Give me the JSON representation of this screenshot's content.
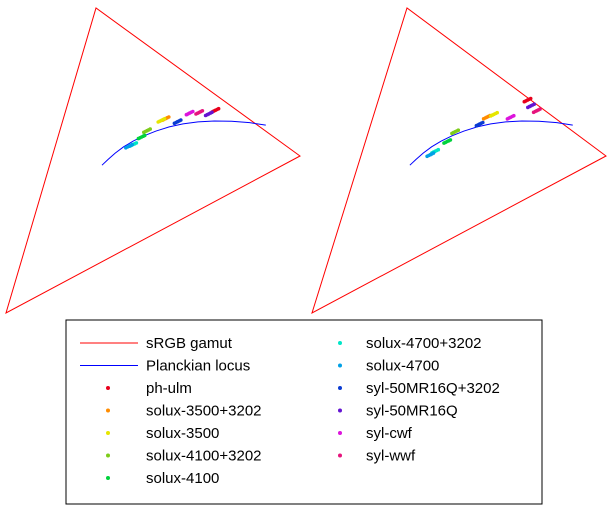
{
  "chart_data": {
    "type": "scatter",
    "description_units": "chromaticity (x, y) in the CIE 1931 diagram",
    "panels": [
      {
        "name": "left",
        "points": [
          {
            "label": "ph-ulm",
            "x": 0.499,
            "y": 0.414
          },
          {
            "label": "solux-3500+3202",
            "x": 0.416,
            "y": 0.402
          },
          {
            "label": "solux-3500",
            "x": 0.409,
            "y": 0.4
          },
          {
            "label": "solux-4100+3202",
            "x": 0.385,
            "y": 0.38
          },
          {
            "label": "solux-4100",
            "x": 0.376,
            "y": 0.37
          },
          {
            "label": "solux-4700+3202",
            "x": 0.362,
            "y": 0.358
          },
          {
            "label": "solux-4700",
            "x": 0.355,
            "y": 0.353
          },
          {
            "label": "syl-50MR16Q+3202",
            "x": 0.436,
            "y": 0.396
          },
          {
            "label": "syl-50MR16Q",
            "x": 0.488,
            "y": 0.41
          },
          {
            "label": "syl-cwf",
            "x": 0.456,
            "y": 0.41
          },
          {
            "label": "syl-wwf",
            "x": 0.472,
            "y": 0.412
          }
        ]
      },
      {
        "name": "right",
        "points": [
          {
            "label": "ph-ulm",
            "x": 0.506,
            "y": 0.432
          },
          {
            "label": "solux-3500+3202",
            "x": 0.438,
            "y": 0.404
          },
          {
            "label": "solux-3500",
            "x": 0.45,
            "y": 0.41
          },
          {
            "label": "solux-4100+3202",
            "x": 0.385,
            "y": 0.378
          },
          {
            "label": "solux-4100",
            "x": 0.372,
            "y": 0.362
          },
          {
            "label": "solux-4700+3202",
            "x": 0.352,
            "y": 0.346
          },
          {
            "label": "solux-4700",
            "x": 0.344,
            "y": 0.338
          },
          {
            "label": "syl-50MR16Q+3202",
            "x": 0.426,
            "y": 0.392
          },
          {
            "label": "syl-50MR16Q",
            "x": 0.512,
            "y": 0.424
          },
          {
            "label": "syl-cwf",
            "x": 0.478,
            "y": 0.402
          },
          {
            "label": "syl-wwf",
            "x": 0.522,
            "y": 0.414
          }
        ]
      }
    ],
    "srgb_gamut": [
      [
        0.64,
        0.33
      ],
      [
        0.3,
        0.6
      ],
      [
        0.15,
        0.06
      ]
    ],
    "planckian_locus": [
      [
        0.31,
        0.32
      ],
      [
        0.32,
        0.33
      ],
      [
        0.332,
        0.341
      ],
      [
        0.346,
        0.352
      ],
      [
        0.362,
        0.362
      ],
      [
        0.38,
        0.371
      ],
      [
        0.4,
        0.379
      ],
      [
        0.422,
        0.386
      ],
      [
        0.445,
        0.391
      ],
      [
        0.47,
        0.394
      ],
      [
        0.497,
        0.395
      ],
      [
        0.526,
        0.394
      ],
      [
        0.556,
        0.391
      ],
      [
        0.583,
        0.386
      ]
    ],
    "legend_placement": "bottom",
    "legend": [
      {
        "label": "sRGB gamut",
        "kind": "line",
        "color": "#ff0000"
      },
      {
        "label": "Planckian locus",
        "kind": "line",
        "color": "#0000ff"
      },
      {
        "label": "ph-ulm",
        "kind": "dot",
        "color": "#e8001c"
      },
      {
        "label": "solux-3500+3202",
        "kind": "dot",
        "color": "#ff8c00"
      },
      {
        "label": "solux-3500",
        "kind": "dot",
        "color": "#e6e600"
      },
      {
        "label": "solux-4100+3202",
        "kind": "dot",
        "color": "#7dcc1a"
      },
      {
        "label": "solux-4100",
        "kind": "dot",
        "color": "#00d23c"
      },
      {
        "label": "solux-4700+3202",
        "kind": "dot",
        "color": "#00e6c8"
      },
      {
        "label": "solux-4700",
        "kind": "dot",
        "color": "#00a0e6"
      },
      {
        "label": "syl-50MR16Q+3202",
        "kind": "dot",
        "color": "#0a3cd2"
      },
      {
        "label": "syl-50MR16Q",
        "kind": "dot",
        "color": "#6414d2"
      },
      {
        "label": "syl-cwf",
        "kind": "dot",
        "color": "#dc14dc"
      },
      {
        "label": "syl-wwf",
        "kind": "dot",
        "color": "#e6147d"
      }
    ]
  }
}
